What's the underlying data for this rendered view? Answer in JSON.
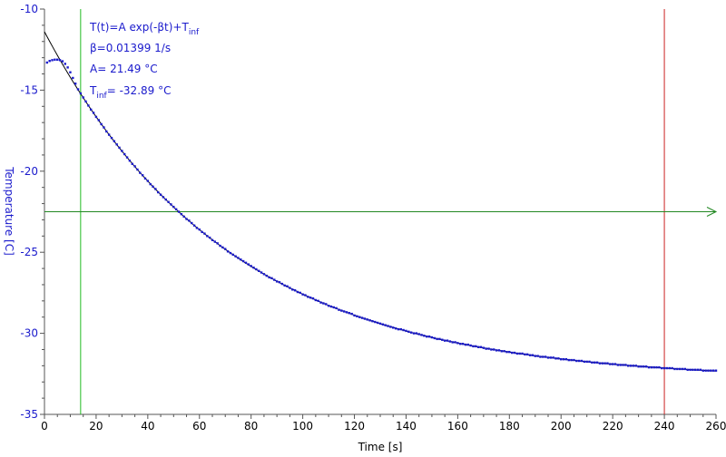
{
  "chart_data": {
    "type": "scatter",
    "xlabel": "Time [s]",
    "ylabel": "Temperature [C]",
    "xlim": [
      0,
      260
    ],
    "ylim": [
      -35,
      -10
    ],
    "x_ticks": [
      "0",
      "20",
      "40",
      "60",
      "80",
      "100",
      "120",
      "140",
      "160",
      "180",
      "200",
      "220",
      "240",
      "260"
    ],
    "y_ticks": [
      "-10",
      "-15",
      "-20",
      "-25",
      "-30",
      "-35"
    ],
    "grid": false,
    "annotation": {
      "model": "T(t)=A exp(-βt)+T",
      "model_sub": "inf",
      "beta": "β=0.01399 1/s",
      "a_value": "A= 21.49 °C",
      "tinf_prefix": "T",
      "tinf_sub": "inf",
      "tinf_value": "= -32.89 °C"
    },
    "fit": {
      "A": 21.49,
      "beta": 0.01399,
      "T_inf": -32.89,
      "x_range": [
        0,
        260
      ]
    },
    "measured": {
      "early_points": [
        [
          1,
          -13.3
        ],
        [
          2,
          -13.2
        ],
        [
          3,
          -13.15
        ],
        [
          4,
          -13.12
        ],
        [
          5,
          -13.12
        ],
        [
          6,
          -13.15
        ],
        [
          7,
          -13.22
        ],
        [
          8,
          -13.38
        ],
        [
          9,
          -13.6
        ],
        [
          10,
          -13.9
        ],
        [
          11,
          -14.25
        ],
        [
          12,
          -14.6
        ],
        [
          13,
          -14.95
        ]
      ],
      "x_start": 14,
      "x_end": 260,
      "step": 1
    },
    "markers": {
      "start_x": 14,
      "end_x": 240,
      "threshold_y": -22.5
    },
    "colors": {
      "data": "#1a1acc",
      "fit": "#000000",
      "start_marker": "#22bb22",
      "end_marker": "#cc2222",
      "threshold_marker": "#228822",
      "axis": "#555555"
    }
  }
}
